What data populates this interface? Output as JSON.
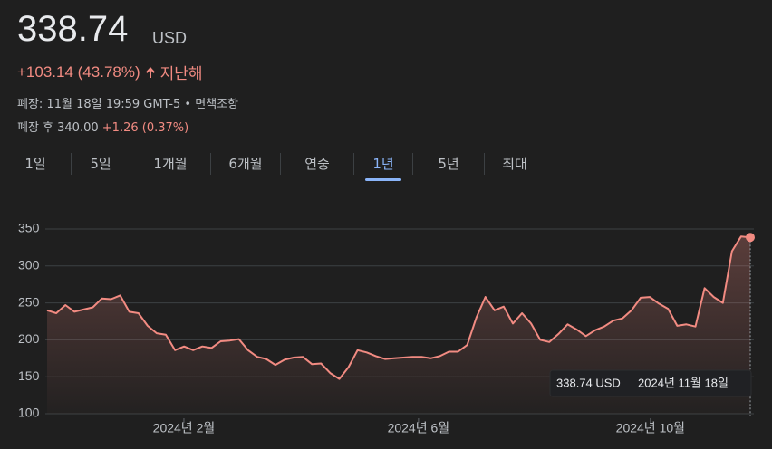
{
  "header": {
    "price": "338.74",
    "currency": "USD",
    "change": "+103.14 (43.78%)",
    "period": "지난해",
    "close_info": "폐장: 11월 18일 19:59 GMT-5",
    "disclaimer": "면책조항",
    "after_hours_label": "폐장 후 340.00",
    "after_hours_change": "+1.26 (0.37%)"
  },
  "tabs": [
    "1일",
    "5일",
    "1개월",
    "6개월",
    "연중",
    "1년",
    "5년",
    "최대"
  ],
  "selected_tab": 5,
  "tooltip": {
    "price": "338.74 USD",
    "date": "2024년 11월 18일"
  },
  "chart_data": {
    "type": "line",
    "series": [
      {
        "name": null,
        "color": "#f28b82",
        "values": [
          240,
          236,
          247,
          238,
          241,
          244,
          256,
          255,
          260,
          238,
          236,
          219,
          209,
          207,
          186,
          191,
          186,
          191,
          189,
          198,
          199,
          201,
          186,
          177,
          174,
          166,
          173,
          176,
          177,
          167,
          168,
          155,
          147,
          163,
          186,
          183,
          178,
          174,
          175,
          176,
          177,
          177,
          175,
          178,
          184,
          184,
          193,
          230,
          258,
          240,
          245,
          222,
          236,
          222,
          200,
          197,
          208,
          221,
          214,
          205,
          213,
          218,
          226,
          229,
          240,
          257,
          258,
          249,
          242,
          219,
          221,
          218,
          270,
          258,
          250,
          320,
          340,
          338.74
        ]
      }
    ],
    "xlim": [
      0,
      77
    ],
    "xticks": [
      {
        "value": 14.98,
        "label": "2024년 2월"
      },
      {
        "value": 40.67,
        "label": "2024년 6월"
      },
      {
        "value": 66.07,
        "label": "2024년 10월"
      }
    ],
    "ylim": [
      100,
      350
    ],
    "yticks": [
      100,
      150,
      200,
      250,
      300,
      350
    ],
    "grid": true
  }
}
